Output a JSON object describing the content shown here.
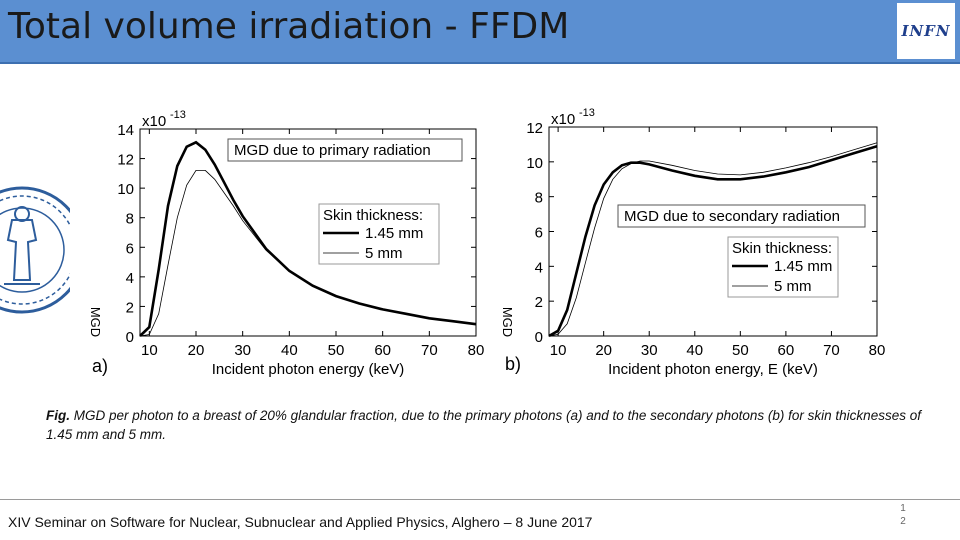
{
  "slide": {
    "title": "Total volume irradiation - FFDM",
    "logo_text": "INFN",
    "seal_icon": "university-seal-icon"
  },
  "caption": {
    "label": "Fig.",
    "text": " MGD per photon to a breast of 20% glandular fraction, due to the primary photons (a) and to the secondary photons (b) for skin thicknesses of 1.45 mm and 5 mm."
  },
  "footer": {
    "text": "XIV Seminar on Software for Nuclear, Subnuclear and Applied Physics, Alghero – 8 June 2017",
    "page_line1": "1",
    "page_line2": "2"
  },
  "chart_data": [
    {
      "type": "line",
      "panel_label": "a)",
      "box_label": "MGD due to primary radiation",
      "multiplier": "x10",
      "multiplier_exp": "-13",
      "xlabel": "Incident photon energy (keV)",
      "ylabel": "MGD",
      "xlim": [
        8,
        80
      ],
      "ylim": [
        0,
        14
      ],
      "xticks": [
        10,
        20,
        30,
        40,
        50,
        60,
        70,
        80
      ],
      "yticks": [
        0,
        2,
        4,
        6,
        8,
        10,
        12,
        14
      ],
      "legend_title": "Skin thickness:",
      "legend_position": "top-right",
      "series": [
        {
          "name": "1.45 mm",
          "style": "thick",
          "x": [
            8,
            10,
            12,
            14,
            16,
            18,
            20,
            22,
            24,
            26,
            28,
            30,
            35,
            40,
            45,
            50,
            55,
            60,
            65,
            70,
            75,
            80
          ],
          "y": [
            0,
            0.6,
            4.5,
            8.8,
            11.5,
            12.8,
            13.1,
            12.6,
            11.6,
            10.4,
            9.2,
            8.1,
            5.9,
            4.4,
            3.4,
            2.7,
            2.2,
            1.8,
            1.5,
            1.2,
            1.0,
            0.8
          ]
        },
        {
          "name": "5 mm",
          "style": "thin",
          "x": [
            8,
            10,
            12,
            14,
            16,
            18,
            20,
            22,
            24,
            26,
            28,
            30,
            35,
            40,
            45,
            50,
            55,
            60,
            65,
            70,
            75,
            80
          ],
          "y": [
            0,
            0.1,
            1.5,
            4.8,
            8.0,
            10.2,
            11.2,
            11.2,
            10.6,
            9.7,
            8.8,
            7.8,
            5.8,
            4.4,
            3.4,
            2.7,
            2.2,
            1.8,
            1.5,
            1.2,
            1.0,
            0.8
          ]
        }
      ]
    },
    {
      "type": "line",
      "panel_label": "b)",
      "box_label": "MGD due to secondary radiation",
      "multiplier": "x10",
      "multiplier_exp": "-13",
      "xlabel": "Incident photon energy, E (keV)",
      "ylabel": "MGD",
      "xlim": [
        8,
        80
      ],
      "ylim": [
        0,
        12
      ],
      "xticks": [
        10,
        20,
        30,
        40,
        50,
        60,
        70,
        80
      ],
      "yticks": [
        0,
        2,
        4,
        6,
        8,
        10,
        12
      ],
      "legend_title": "Skin thickness:",
      "legend_position": "right",
      "series": [
        {
          "name": "1.45 mm",
          "style": "thick",
          "x": [
            8,
            10,
            12,
            14,
            16,
            18,
            20,
            22,
            24,
            26,
            28,
            30,
            35,
            40,
            45,
            50,
            55,
            60,
            65,
            70,
            75,
            80
          ],
          "y": [
            0,
            0.3,
            1.5,
            3.6,
            5.7,
            7.5,
            8.7,
            9.4,
            9.8,
            9.95,
            9.95,
            9.85,
            9.5,
            9.2,
            9.0,
            9.0,
            9.15,
            9.4,
            9.7,
            10.1,
            10.5,
            10.9
          ]
        },
        {
          "name": "5 mm",
          "style": "thin",
          "x": [
            8,
            10,
            12,
            14,
            16,
            18,
            20,
            22,
            24,
            26,
            28,
            30,
            35,
            40,
            45,
            50,
            55,
            60,
            65,
            70,
            75,
            80
          ],
          "y": [
            0,
            0.1,
            0.7,
            2.2,
            4.2,
            6.2,
            7.9,
            9.0,
            9.6,
            9.9,
            10.05,
            10.05,
            9.8,
            9.5,
            9.3,
            9.25,
            9.4,
            9.65,
            9.95,
            10.3,
            10.7,
            11.1
          ]
        }
      ]
    }
  ]
}
